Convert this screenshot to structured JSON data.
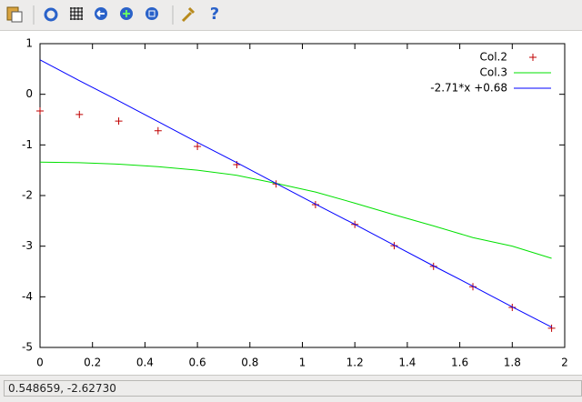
{
  "chart_data": {
    "type": "line",
    "x": [
      0,
      0.15,
      0.3,
      0.45,
      0.6,
      0.75,
      0.9,
      1.05,
      1.2,
      1.35,
      1.5,
      1.65,
      1.8,
      1.95
    ],
    "series": [
      {
        "name": "Col.2",
        "color": "#c00000",
        "marker": "+",
        "values": [
          -0.33,
          -0.4,
          -0.53,
          -0.72,
          -1.03,
          -1.39,
          -1.77,
          -2.18,
          -2.57,
          -2.99,
          -3.4,
          -3.8,
          -4.21,
          -4.62
        ]
      },
      {
        "name": "Col.3",
        "color": "#00e000",
        "values": [
          -1.34,
          -1.35,
          -1.38,
          -1.43,
          -1.5,
          -1.6,
          -1.76,
          -1.93,
          -2.15,
          -2.38,
          -2.6,
          -2.83,
          -3.0,
          -3.24
        ]
      },
      {
        "name": "-2.71*x +0.68",
        "color": "#0000ff",
        "values": [
          0.68,
          0.27,
          -0.13,
          -0.54,
          -0.95,
          -1.35,
          -1.76,
          -2.17,
          -2.57,
          -2.98,
          -3.39,
          -3.79,
          -4.2,
          -4.6
        ]
      }
    ],
    "xlim": [
      0,
      2
    ],
    "ylim": [
      -5,
      1
    ],
    "xticks": [
      0,
      0.2,
      0.4,
      0.6,
      0.8,
      1,
      1.2,
      1.4,
      1.6,
      1.8,
      2
    ],
    "yticks": [
      -5,
      -4,
      -3,
      -2,
      -1,
      0,
      1
    ],
    "legend": "top-right"
  },
  "status_bar": "0.548659, -2.62730"
}
